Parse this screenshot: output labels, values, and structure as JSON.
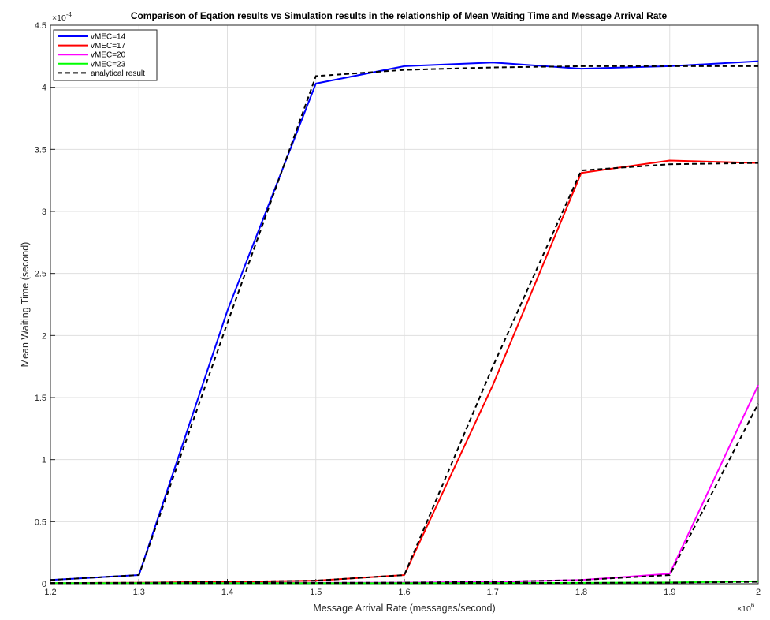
{
  "chart_data": {
    "type": "line",
    "title": "Comparison of Eqation results vs Simulation results in the relationship of Mean Waiting Time and Message Arrival Rate",
    "xlabel": "Message Arrival Rate (messages/second)",
    "ylabel": "Mean Waiting Time (second)",
    "x_exponent_label": "×10",
    "x_exponent": "6",
    "y_exponent_label": "×10",
    "y_exponent": "-4",
    "xlim": [
      1.2,
      2.0
    ],
    "ylim": [
      0,
      4.5
    ],
    "x_scale": 1000000,
    "y_scale": 0.0001,
    "x_ticks": [
      "1.2",
      "1.3",
      "1.4",
      "1.5",
      "1.6",
      "1.7",
      "1.8",
      "1.9",
      "2"
    ],
    "y_ticks": [
      "0",
      "0.5",
      "1",
      "1.5",
      "2",
      "2.5",
      "3",
      "3.5",
      "4",
      "4.5"
    ],
    "grid": true,
    "legend_position": "top-left",
    "x": [
      1.2,
      1.3,
      1.4,
      1.5,
      1.6,
      1.7,
      1.8,
      1.9,
      2.0
    ],
    "series": [
      {
        "name": "vMEC=14",
        "color": "#0000ff",
        "dash": "solid",
        "values": [
          0.03,
          0.07,
          2.2,
          4.03,
          4.17,
          4.2,
          4.15,
          4.17,
          4.21
        ]
      },
      {
        "name": "vMEC=17",
        "color": "#ff0000",
        "dash": "solid",
        "values": [
          0.005,
          0.008,
          0.015,
          0.025,
          0.07,
          1.6,
          3.31,
          3.41,
          3.39
        ]
      },
      {
        "name": "vMEC=20",
        "color": "#ff00ff",
        "dash": "solid",
        "values": [
          0.005,
          0.005,
          0.006,
          0.007,
          0.009,
          0.015,
          0.03,
          0.08,
          1.6
        ]
      },
      {
        "name": "vMEC=23",
        "color": "#00ff00",
        "dash": "solid",
        "values": [
          0.005,
          0.005,
          0.005,
          0.005,
          0.005,
          0.006,
          0.007,
          0.01,
          0.02
        ]
      }
    ],
    "analytical": {
      "name": "analytical result",
      "color": "#000000",
      "dash": "dashed",
      "lines": [
        [
          0.03,
          0.07,
          2.1,
          4.09,
          4.14,
          4.16,
          4.17,
          4.17,
          4.17
        ],
        [
          0.005,
          0.008,
          0.015,
          0.025,
          0.07,
          1.75,
          3.33,
          3.38,
          3.39
        ],
        [
          0.005,
          0.005,
          0.006,
          0.007,
          0.009,
          0.015,
          0.03,
          0.07,
          1.45
        ],
        [
          0.005,
          0.005,
          0.005,
          0.005,
          0.005,
          0.006,
          0.007,
          0.009,
          0.015
        ]
      ]
    }
  }
}
